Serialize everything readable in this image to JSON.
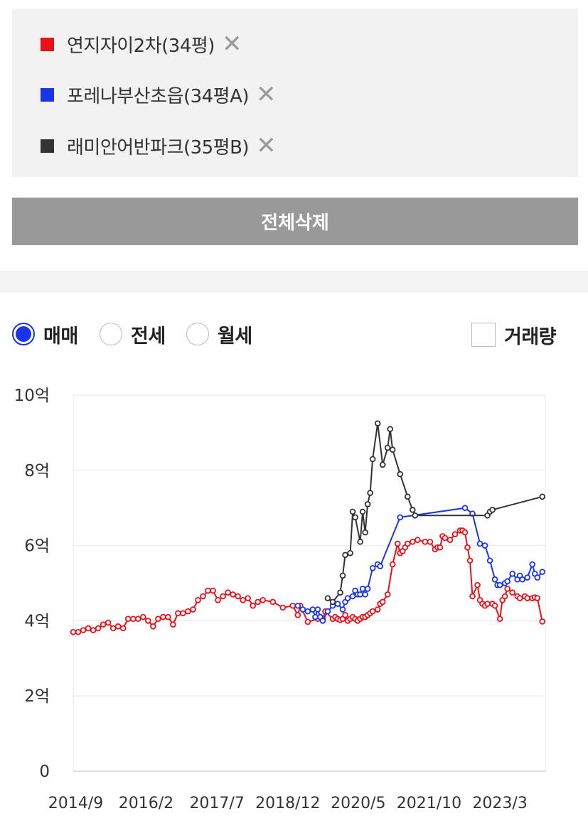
{
  "legend": [
    {
      "label": "연지자이2차(34평)",
      "color": "#e8101a",
      "remove_icon": "close-icon"
    },
    {
      "label": "포레나부산초읍(34평A)",
      "color": "#1a35e8",
      "remove_icon": "close-icon"
    },
    {
      "label": "래미안어반파크(35평B)",
      "color": "#333333",
      "remove_icon": "close-icon"
    }
  ],
  "clear_all_label": "전체삭제",
  "tabs": [
    {
      "label": "매매",
      "selected": true
    },
    {
      "label": "전세",
      "selected": false
    },
    {
      "label": "월세",
      "selected": false
    }
  ],
  "volume_label": "거래량",
  "volume_checked": false,
  "chart_data": {
    "type": "line",
    "y_tick_labels": [
      "0",
      "2억",
      "4억",
      "6억",
      "8억",
      "10억"
    ],
    "y_ticks": [
      0,
      2,
      4,
      6,
      8,
      10
    ],
    "ylim": [
      0,
      10
    ],
    "x_tick_labels": [
      "2014/9",
      "2016/2",
      "2017/7",
      "2018/12",
      "2020/5",
      "2021/10",
      "2023/3"
    ],
    "x_ticks": [
      2014.67,
      2016.08,
      2017.5,
      2018.92,
      2020.33,
      2021.75,
      2023.17
    ],
    "xlim": [
      2014.62,
      2024.08
    ],
    "grid": true,
    "series": [
      {
        "name": "연지자이2차(34평)",
        "color": "#e8101a",
        "x": [
          2014.62,
          2014.72,
          2014.82,
          2014.92,
          2015.02,
          2015.12,
          2015.22,
          2015.32,
          2015.42,
          2015.52,
          2015.62,
          2015.72,
          2015.82,
          2015.92,
          2016.02,
          2016.12,
          2016.22,
          2016.32,
          2016.42,
          2016.52,
          2016.62,
          2016.72,
          2016.82,
          2016.92,
          2017.02,
          2017.12,
          2017.22,
          2017.32,
          2017.42,
          2017.52,
          2017.62,
          2017.72,
          2017.82,
          2017.92,
          2018.02,
          2018.12,
          2018.22,
          2018.32,
          2018.42,
          2018.62,
          2018.82,
          2019.02,
          2019.12,
          2019.17,
          2019.32,
          2019.52,
          2019.57,
          2019.62,
          2019.67,
          2019.82,
          2019.87,
          2019.92,
          2019.97,
          2020.02,
          2020.07,
          2020.12,
          2020.17,
          2020.22,
          2020.27,
          2020.32,
          2020.37,
          2020.42,
          2020.47,
          2020.52,
          2020.57,
          2020.62,
          2020.72,
          2020.77,
          2020.82,
          2020.92,
          2021.02,
          2021.12,
          2021.17,
          2021.22,
          2021.27,
          2021.32,
          2021.42,
          2021.52,
          2021.67,
          2021.77,
          2021.87,
          2021.92,
          2021.97,
          2022.02,
          2022.07,
          2022.17,
          2022.27,
          2022.37,
          2022.42,
          2022.47,
          2022.52,
          2022.57,
          2022.62,
          2022.72,
          2022.77,
          2022.82,
          2022.87,
          2022.92,
          2023.02,
          2023.07,
          2023.17,
          2023.22,
          2023.27,
          2023.32,
          2023.42,
          2023.52,
          2023.57,
          2023.67,
          2023.72,
          2023.82,
          2023.87,
          2023.92,
          2024.02
        ],
        "y": [
          3.7,
          3.7,
          3.75,
          3.8,
          3.75,
          3.8,
          3.9,
          3.95,
          3.8,
          3.85,
          3.8,
          4.05,
          4.05,
          4.05,
          4.1,
          4.0,
          3.85,
          4.05,
          4.1,
          4.1,
          3.9,
          4.2,
          4.2,
          4.25,
          4.3,
          4.55,
          4.65,
          4.8,
          4.8,
          4.55,
          4.65,
          4.75,
          4.7,
          4.65,
          4.55,
          4.6,
          4.4,
          4.5,
          4.55,
          4.5,
          4.35,
          4.4,
          4.15,
          4.4,
          3.97,
          4.05,
          4.1,
          4.05,
          4.25,
          4.05,
          4.1,
          4.05,
          4.02,
          4.05,
          4.15,
          4.0,
          4.05,
          4.1,
          4.05,
          4.0,
          4.05,
          4.1,
          4.1,
          4.15,
          4.2,
          4.25,
          4.3,
          4.45,
          4.5,
          4.7,
          5.5,
          6.05,
          5.8,
          5.85,
          5.95,
          6.05,
          6.1,
          6.15,
          6.1,
          6.1,
          5.9,
          5.95,
          5.95,
          6.25,
          6.2,
          6.15,
          6.3,
          6.4,
          6.4,
          6.35,
          5.95,
          5.6,
          4.65,
          4.95,
          4.55,
          4.45,
          4.4,
          4.45,
          4.45,
          4.4,
          4.05,
          4.55,
          4.65,
          4.85,
          4.75,
          4.65,
          4.6,
          4.65,
          4.6,
          4.6,
          4.62,
          4.6,
          3.98
        ]
      },
      {
        "name": "포레나부산초읍(34평A)",
        "color": "#1a35e8",
        "x": [
          2019.12,
          2019.22,
          2019.32,
          2019.42,
          2019.47,
          2019.52,
          2019.57,
          2019.62,
          2019.72,
          2019.82,
          2019.92,
          2020.02,
          2020.07,
          2020.12,
          2020.22,
          2020.27,
          2020.32,
          2020.37,
          2020.42,
          2020.47,
          2020.52,
          2020.62,
          2020.72,
          2020.77,
          2021.17,
          2022.47,
          2022.62,
          2022.77,
          2022.87,
          2022.97,
          2023.07,
          2023.12,
          2023.17,
          2023.27,
          2023.32,
          2023.42,
          2023.52,
          2023.57,
          2023.62,
          2023.72,
          2023.82,
          2023.87,
          2023.92,
          2024.02
        ],
        "y": [
          4.4,
          4.3,
          4.25,
          4.3,
          4.1,
          4.3,
          4.1,
          4.0,
          4.25,
          4.4,
          4.45,
          4.3,
          4.5,
          4.6,
          4.65,
          4.8,
          4.7,
          4.7,
          4.85,
          4.7,
          4.85,
          5.4,
          5.5,
          5.45,
          6.75,
          7.0,
          6.85,
          6.05,
          6.0,
          5.6,
          5.1,
          4.95,
          4.95,
          5.0,
          5.05,
          5.25,
          5.1,
          5.2,
          5.1,
          5.15,
          5.5,
          5.25,
          5.15,
          5.3
        ]
      },
      {
        "name": "래미안어반파크(35평B)",
        "color": "#333333",
        "x": [
          2019.72,
          2019.82,
          2019.97,
          2020.02,
          2020.07,
          2020.17,
          2020.22,
          2020.27,
          2020.37,
          2020.42,
          2020.47,
          2020.52,
          2020.57,
          2020.62,
          2020.72,
          2020.82,
          2020.92,
          2020.97,
          2021.02,
          2021.17,
          2021.32,
          2021.42,
          2021.47,
          2022.92,
          2022.97,
          2023.02,
          2024.02
        ],
        "y": [
          4.6,
          4.5,
          4.75,
          5.2,
          5.75,
          5.8,
          6.9,
          6.75,
          6.1,
          6.9,
          6.35,
          7.1,
          7.4,
          8.3,
          9.25,
          8.15,
          8.6,
          9.1,
          8.55,
          7.9,
          7.3,
          6.95,
          6.8,
          6.8,
          6.9,
          6.95,
          7.3
        ]
      }
    ]
  }
}
